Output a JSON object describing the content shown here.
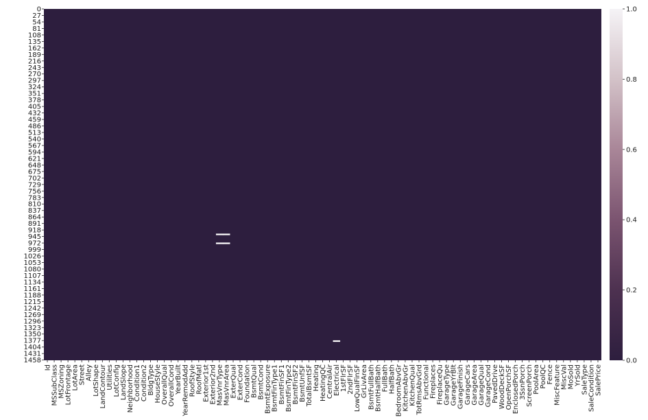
{
  "chart_data": {
    "type": "heatmap",
    "title": "",
    "xlabel": "",
    "ylabel": "",
    "columns": [
      "Id",
      "MSSubClass",
      "MSZoning",
      "LotFrontage",
      "LotArea",
      "Street",
      "Alley",
      "LotShape",
      "LandContour",
      "Utilities",
      "LotConfig",
      "LandSlope",
      "Neighborhood",
      "Condition1",
      "Condition2",
      "BldgType",
      "HouseStyle",
      "OverallQual",
      "OverallCond",
      "YearBuilt",
      "YearRemodAdd",
      "RoofStyle",
      "RoofMatl",
      "Exterior1st",
      "Exterior2nd",
      "MasVnrType",
      "MasVnrArea",
      "ExterQual",
      "ExterCond",
      "Foundation",
      "BsmtQual",
      "BsmtCond",
      "BsmtExposure",
      "BsmtFinType1",
      "BsmtFinSF1",
      "BsmtFinType2",
      "BsmtFinSF2",
      "BsmtUnfSF",
      "TotalBsmtSF",
      "Heating",
      "HeatingQC",
      "CentralAir",
      "Electrical",
      "1stFlrSF",
      "2ndFlrSF",
      "LowQualFinSF",
      "GrLivArea",
      "BsmtFullBath",
      "BsmtHalfBath",
      "FullBath",
      "HalfBath",
      "BedroomAbvGr",
      "KitchenAbvGr",
      "KitchenQual",
      "TotRmsAbvGrd",
      "Functional",
      "Fireplaces",
      "FireplaceQu",
      "GarageType",
      "GarageYrBlt",
      "GarageFinish",
      "GarageCars",
      "GarageArea",
      "GarageQual",
      "GarageCond",
      "PavedDrive",
      "WoodDeckSF",
      "OpenPorchSF",
      "EnclosedPorch",
      "3SsnPorch",
      "ScreenPorch",
      "PoolArea",
      "PoolQC",
      "Fence",
      "MiscFeature",
      "MiscVal",
      "MoSold",
      "YrSold",
      "SaleType",
      "SaleCondition",
      "SalePrice"
    ],
    "row_ticks": [
      "0",
      "27",
      "54",
      "81",
      "108",
      "135",
      "162",
      "189",
      "216",
      "243",
      "270",
      "297",
      "324",
      "351",
      "378",
      "405",
      "432",
      "459",
      "486",
      "513",
      "540",
      "567",
      "594",
      "621",
      "648",
      "675",
      "702",
      "729",
      "756",
      "783",
      "810",
      "837",
      "864",
      "891",
      "918",
      "945",
      "972",
      "999",
      "1026",
      "1053",
      "1080",
      "1107",
      "1134",
      "1161",
      "1188",
      "1215",
      "1242",
      "1269",
      "1296",
      "1323",
      "1350",
      "1377",
      "1404",
      "1431",
      "1458"
    ],
    "row_count": 1460,
    "default_value": 0,
    "missing_cells": [
      {
        "column": "MasVnrType",
        "row": 936
      },
      {
        "column": "MasVnrArea",
        "row": 936
      },
      {
        "column": "MasVnrType",
        "row": 973
      },
      {
        "column": "MasVnrArea",
        "row": 973
      },
      {
        "column": "Electrical",
        "row": 1379
      }
    ],
    "colorbar": {
      "min": 0,
      "max": 1.0,
      "ticks": [
        "0.0",
        "0.2",
        "0.4",
        "0.6",
        "0.8",
        "1.0"
      ]
    },
    "colors": {
      "low": "#2d1e3e",
      "high": "#f5f3f6",
      "missing": "#ffffff",
      "frame": "#222222"
    }
  }
}
